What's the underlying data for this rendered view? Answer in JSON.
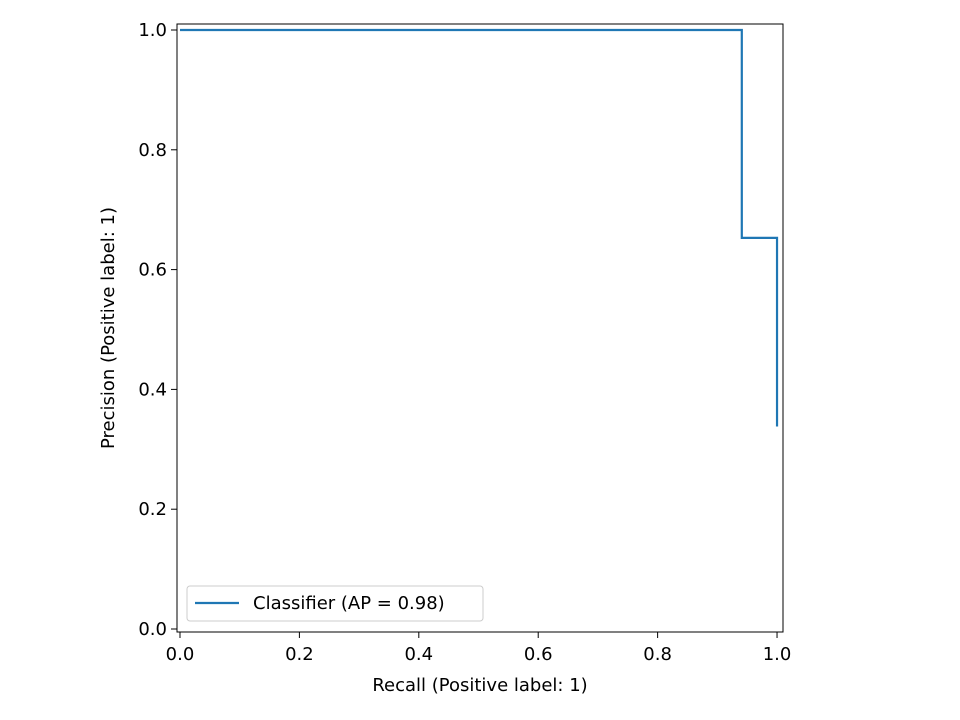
{
  "chart_data": {
    "type": "line",
    "drawstyle": "steps-post",
    "xlabel": "Recall (Positive label: 1)",
    "ylabel": "Precision (Positive label: 1)",
    "xlim": [
      -0.005,
      1.01
    ],
    "ylim": [
      -0.005,
      1.01
    ],
    "x_ticks": [
      0.0,
      0.2,
      0.4,
      0.6,
      0.8,
      1.0
    ],
    "x_tick_labels": [
      "0.0",
      "0.2",
      "0.4",
      "0.6",
      "0.8",
      "1.0"
    ],
    "y_ticks": [
      0.0,
      0.2,
      0.4,
      0.6,
      0.8,
      1.0
    ],
    "y_tick_labels": [
      "0.0",
      "0.2",
      "0.4",
      "0.6",
      "0.8",
      "1.0"
    ],
    "grid": false,
    "legend_placement": "lower-left",
    "series": [
      {
        "name": "Classifier (AP = 0.98)",
        "color": "#1f77b4",
        "points": [
          {
            "x": 0.0,
            "y": 1.0
          },
          {
            "x": 0.941,
            "y": 1.0
          },
          {
            "x": 0.941,
            "y": 0.653
          },
          {
            "x": 1.0,
            "y": 0.653
          },
          {
            "x": 1.0,
            "y": 0.338
          }
        ]
      }
    ]
  }
}
